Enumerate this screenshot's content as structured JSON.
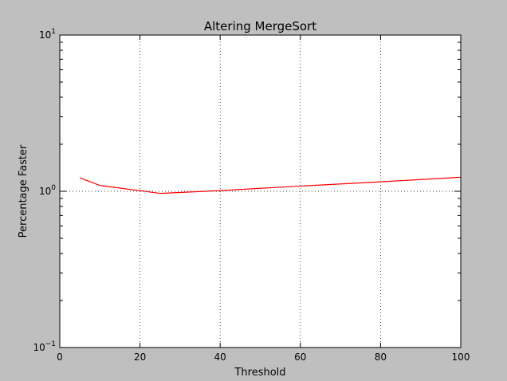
{
  "chart_data": {
    "type": "line",
    "title": "Altering MergeSort",
    "xlabel": "Threshold",
    "ylabel": "Percentage Faster",
    "xlim": [
      0,
      100
    ],
    "ylim": [
      0.1,
      10
    ],
    "yscale": "log",
    "grid": true,
    "x_ticks": [
      0,
      20,
      40,
      60,
      80,
      100
    ],
    "x_tick_labels": [
      "0",
      "20",
      "40",
      "60",
      "80",
      "100"
    ],
    "y_ticks": [
      0.1,
      1,
      10
    ],
    "y_tick_labels": [
      {
        "base": "10",
        "exp": "−1"
      },
      {
        "base": "10",
        "exp": "0"
      },
      {
        "base": "10",
        "exp": "1"
      }
    ],
    "series": [
      {
        "color": "#ff0000",
        "x": [
          5,
          10,
          25,
          40,
          60,
          80,
          100
        ],
        "y": [
          1.22,
          1.09,
          0.97,
          1.01,
          1.08,
          1.15,
          1.23
        ]
      }
    ]
  }
}
